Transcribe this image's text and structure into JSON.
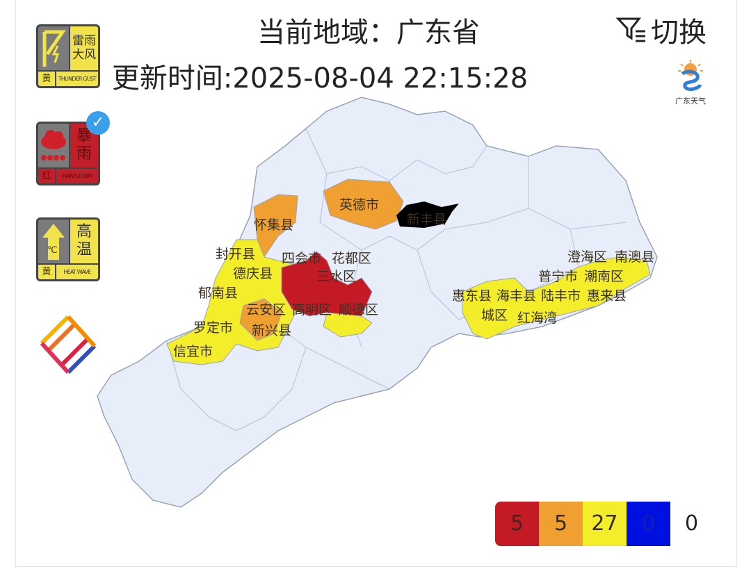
{
  "header": {
    "region_label": "当前地域：广东省",
    "update_time": "更新时间:2025-08-04 22:15:28",
    "switch_label": "切换",
    "switch_icon": "filter-list-icon"
  },
  "logo": {
    "text": "广东天气"
  },
  "warnings": [
    {
      "cn": "雷雨大风",
      "level": "黄",
      "en": "THUNDER GUST",
      "color": "#f2e34a",
      "icon": "lightning-flag-icon"
    },
    {
      "cn": "暴雨",
      "level": "红",
      "en": "RAIN STORM",
      "color": "#c1202a",
      "icon": "rain-cloud-icon",
      "selected": true
    },
    {
      "cn": "高温",
      "level": "黄",
      "en": "HEAT WAVE",
      "color": "#f2e34a",
      "icon": "thermometer-arrow-icon"
    }
  ],
  "map": {
    "colors": {
      "base": "#e7eefa",
      "border": "#9aa3b5",
      "red": "#c41a25",
      "orange": "#f0a030",
      "yellow": "#f4ee2a",
      "black": "#000000"
    },
    "labels": [
      "怀集县",
      "英德市",
      "新丰县",
      "封开县",
      "德庆县",
      "四会市",
      "花都区",
      "三水区",
      "郁南县",
      "云安区",
      "高明区",
      "顺德区",
      "罗定市",
      "新兴县",
      "信宜市",
      "惠东县",
      "海丰县",
      "陆丰市",
      "城区",
      "红海湾",
      "普宁市",
      "惠来县",
      "潮南区",
      "澄海区",
      "南澳县"
    ]
  },
  "legend": {
    "counts": [
      "5",
      "5",
      "27",
      "0"
    ],
    "colors": [
      "#c41a25",
      "#f0a030",
      "#f4ee2a",
      "#0010e0"
    ],
    "other": "0"
  }
}
